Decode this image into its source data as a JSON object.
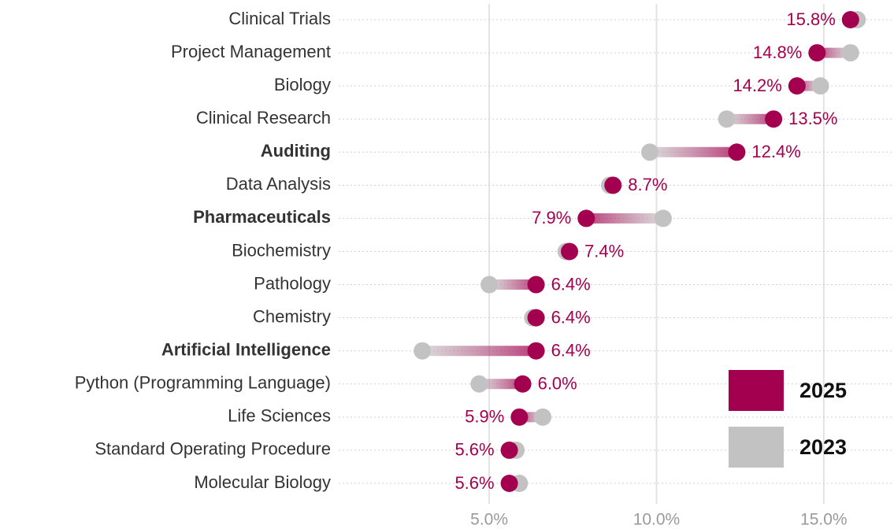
{
  "chart_data": {
    "type": "dumbbell",
    "categories": [
      "Clinical Trials",
      "Project Management",
      "Biology",
      "Clinical Research",
      "Auditing",
      "Data Analysis",
      "Pharmaceuticals",
      "Biochemistry",
      "Pathology",
      "Chemistry",
      "Artificial Intelligence",
      "Python (Programming Language)",
      "Life Sciences",
      "Standard Operating Procedure",
      "Molecular Biology"
    ],
    "bold": [
      false,
      false,
      false,
      false,
      true,
      false,
      true,
      false,
      false,
      false,
      true,
      false,
      false,
      false,
      false
    ],
    "series": [
      {
        "name": "2025",
        "color": "#a3004f",
        "values": [
          15.8,
          14.8,
          14.2,
          13.5,
          12.4,
          8.7,
          7.9,
          7.4,
          6.4,
          6.4,
          6.4,
          6.0,
          5.9,
          5.6,
          5.6
        ],
        "value_labels": [
          "15.8%",
          "14.8%",
          "14.2%",
          "13.5%",
          "12.4%",
          "8.7%",
          "7.9%",
          "7.4%",
          "6.4%",
          "6.4%",
          "6.4%",
          "6.0%",
          "5.9%",
          "5.6%",
          "5.6%"
        ]
      },
      {
        "name": "2023",
        "color": "#c2c2c2",
        "values": [
          16.0,
          15.8,
          14.9,
          12.1,
          9.8,
          8.6,
          10.2,
          7.3,
          5.0,
          6.3,
          3.0,
          4.7,
          6.6,
          5.8,
          5.9
        ]
      }
    ],
    "xlim": [
      0.5,
      17.1
    ],
    "xticks": [
      {
        "value": 5,
        "label": "5.0%"
      },
      {
        "value": 10,
        "label": "10.0%"
      },
      {
        "value": 15,
        "label": "15.0%"
      }
    ],
    "grid": true,
    "legend": "lower right"
  }
}
